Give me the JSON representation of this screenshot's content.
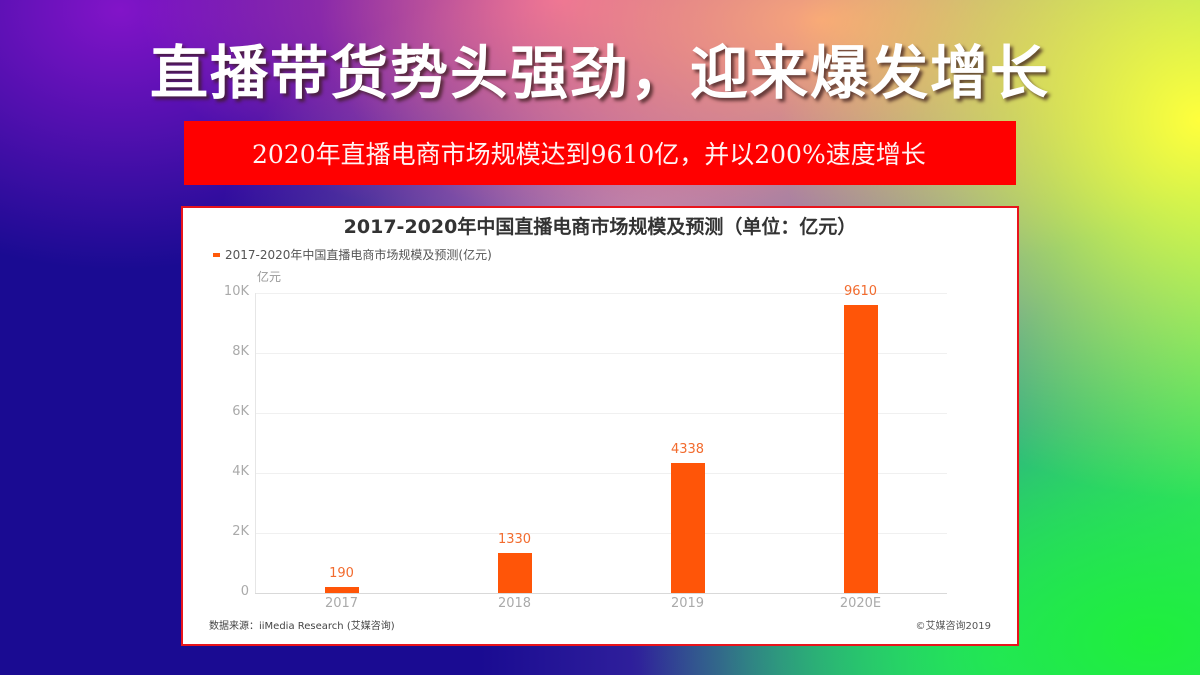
{
  "slide": {
    "title": "直播带货势头强劲，迎来爆发增长",
    "banner_text": "2020年直播电商市场规模达到9610亿，并以200%速度增长"
  },
  "colors": {
    "bar": "#ff5508",
    "banner": "#ff0000",
    "chart_border": "#e8141c",
    "label": "#f26b2e"
  },
  "chart_data": {
    "type": "bar",
    "title": "2017-2020年中国直播电商市场规模及预测（单位：亿元）",
    "legend": [
      "2017-2020年中国直播电商市场规模及预测(亿元)"
    ],
    "legend_position": "top-left",
    "ylabel": "亿元",
    "xlabel": "",
    "categories": [
      "2017",
      "2018",
      "2019",
      "2020E"
    ],
    "values": [
      190,
      1330,
      4338,
      9610
    ],
    "data_labels": [
      "190",
      "1330",
      "4338",
      "9610"
    ],
    "ylim": [
      0,
      10000
    ],
    "yticks": [
      0,
      2000,
      4000,
      6000,
      8000,
      10000
    ],
    "ytick_labels": [
      "0",
      "2K",
      "4K",
      "6K",
      "8K",
      "10K"
    ],
    "grid": true,
    "source": "数据来源：iiMedia Research (艾媒咨询)",
    "copyright": "©艾媒咨询2019"
  }
}
